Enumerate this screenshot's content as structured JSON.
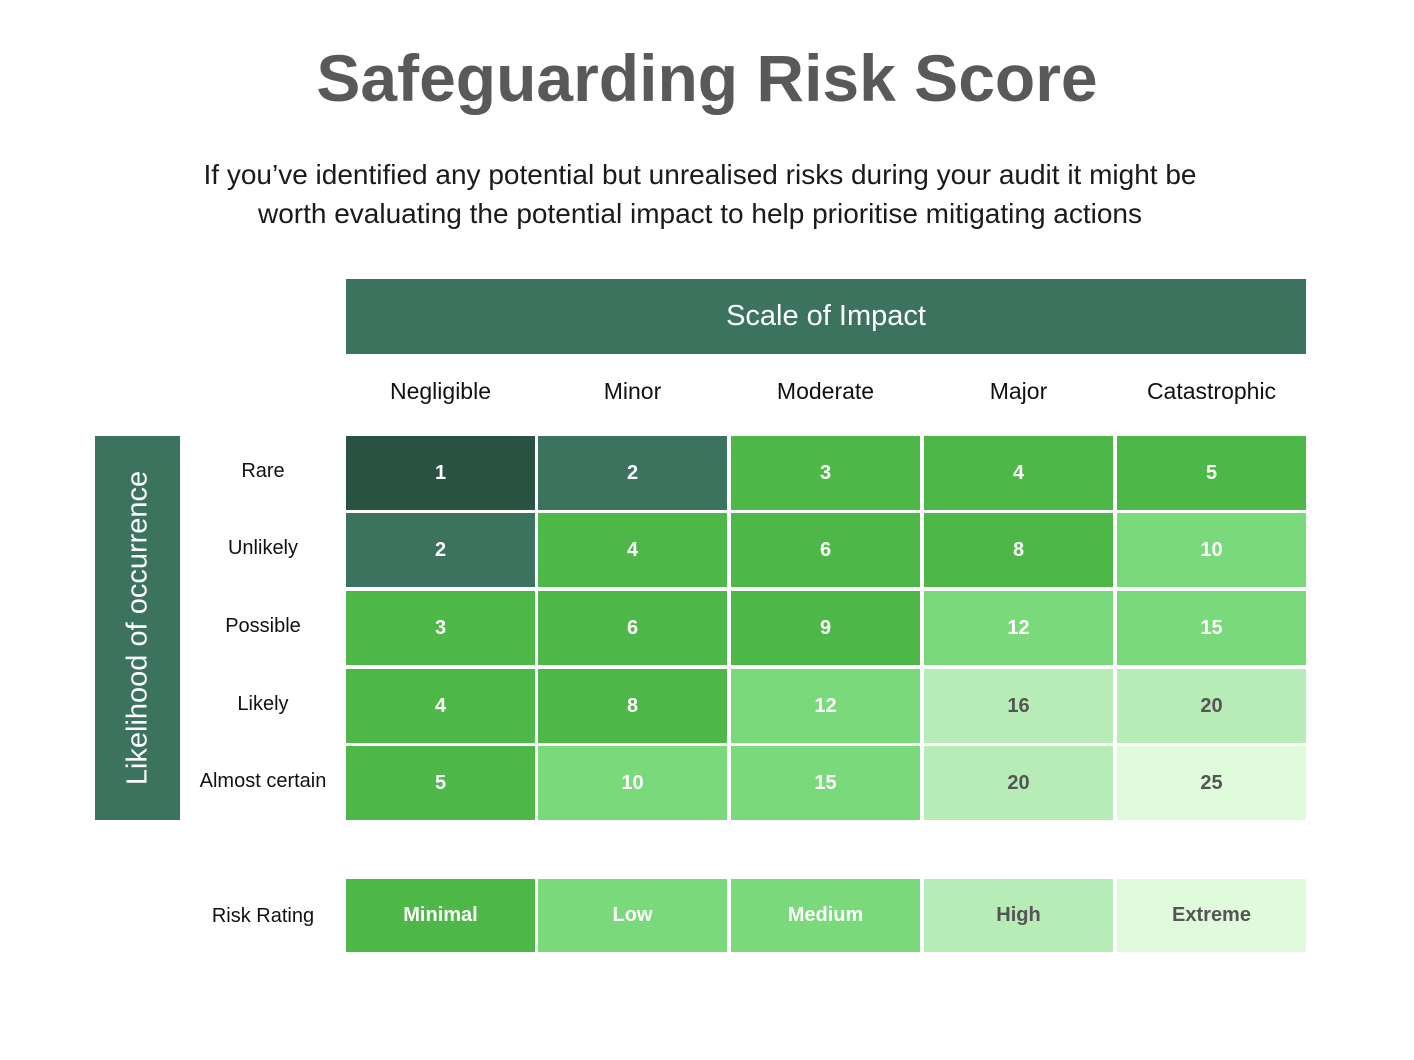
{
  "title": "Safeguarding Risk Score",
  "subtitle_lines": [
    "If you’ve identified any potential but unrealised risks during your audit it might be",
    "worth evaluating the potential impact to help prioritise mitigating actions"
  ],
  "impact_label": "Scale of Impact",
  "likelihood_label": "Likelihood of occurrence",
  "columns": [
    "Negligible",
    "Minor",
    "Moderate",
    "Major",
    "Catastrophic"
  ],
  "rows": [
    "Rare",
    "Unlikely",
    "Possible",
    "Likely",
    "Almost certain"
  ],
  "scores": [
    [
      1,
      2,
      3,
      4,
      5
    ],
    [
      2,
      4,
      6,
      8,
      10
    ],
    [
      3,
      6,
      9,
      12,
      15
    ],
    [
      4,
      8,
      12,
      16,
      20
    ],
    [
      5,
      10,
      15,
      20,
      25
    ]
  ],
  "risk_rating_label": "Risk Rating",
  "risk_ratings": [
    "Minimal",
    "Low",
    "Medium",
    "High",
    "Extreme"
  ],
  "colors": {
    "header": "#3b735e",
    "darkest": "#295243",
    "teal": "#3b735e",
    "green": "#4db748",
    "light_green": "#79d97b",
    "pale_green": "#b7ecb6",
    "very_pale_green": "#e0fbdb",
    "dark_text": "#555555"
  }
}
